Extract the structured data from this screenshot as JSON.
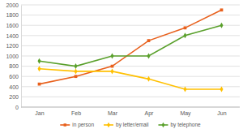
{
  "chart_data": {
    "type": "line",
    "categories": [
      "Jan",
      "Feb",
      "Mar",
      "Apr",
      "May",
      "Jun"
    ],
    "series": [
      {
        "name": "in person",
        "color": "#e8601c",
        "marker": "square",
        "values": [
          450,
          600,
          800,
          1300,
          1550,
          1900
        ]
      },
      {
        "name": "by letter/email",
        "color": "#ffc000",
        "marker": "diamond",
        "values": [
          750,
          700,
          700,
          550,
          350,
          350
        ]
      },
      {
        "name": "by telephone",
        "color": "#5aa02c",
        "marker": "diamond",
        "values": [
          900,
          800,
          1000,
          1000,
          1400,
          1600
        ]
      }
    ],
    "ylim": [
      0,
      2000
    ],
    "yticks": [
      0,
      200,
      400,
      600,
      800,
      1000,
      1200,
      1400,
      1600,
      1800,
      2000
    ],
    "grid": true,
    "legend": "bottom"
  }
}
